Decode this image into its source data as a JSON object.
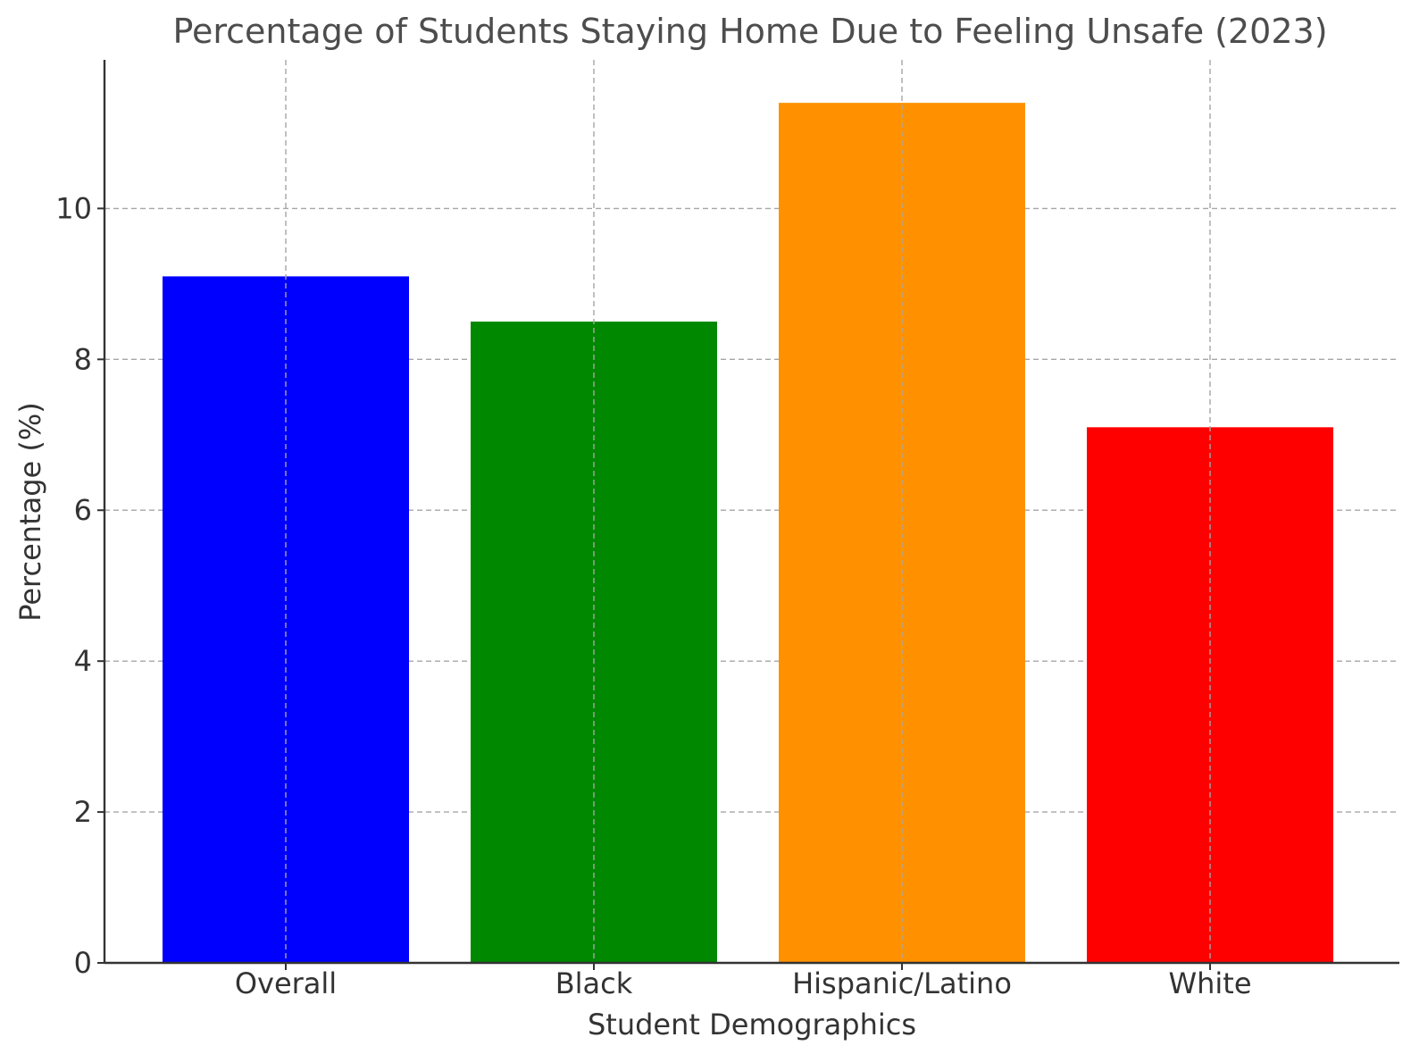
{
  "chart_data": {
    "type": "bar",
    "title": "Percentage of Students Staying Home Due to Feeling Unsafe (2023)",
    "xlabel": "Student Demographics",
    "ylabel": "Percentage (%)",
    "categories": [
      "Overall",
      "Black",
      "Hispanic/Latino",
      "White"
    ],
    "values": [
      9.1,
      8.5,
      11.4,
      7.1
    ],
    "colors": [
      "#0000ff",
      "#008800",
      "#ff9100",
      "#ff0000"
    ],
    "ylim": [
      0,
      11.97
    ],
    "yticks": [
      0,
      2,
      4,
      6,
      8,
      10
    ],
    "grid": true
  }
}
